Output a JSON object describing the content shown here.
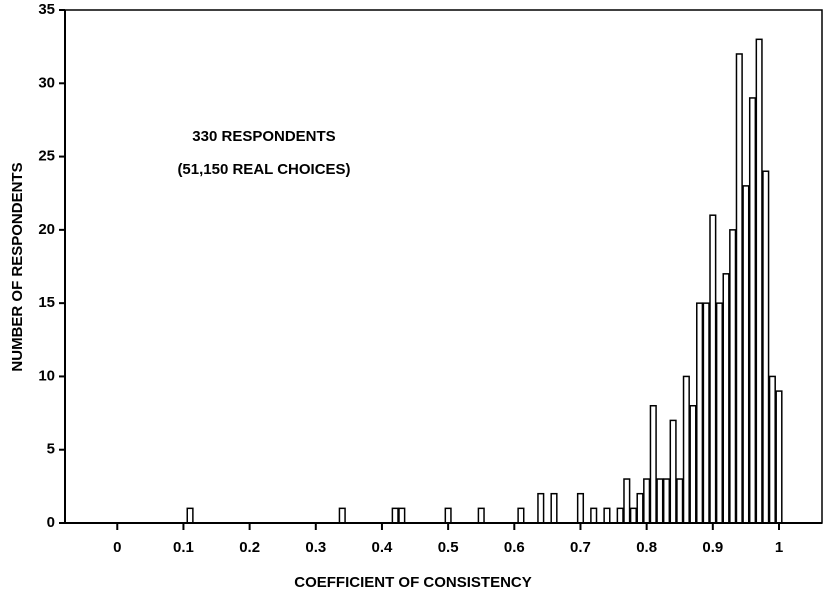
{
  "chart_data": {
    "type": "bar",
    "annotations": [
      "330 RESPONDENTS",
      "(51,150 REAL CHOICES)"
    ],
    "x_label": "COEFFICIENT OF CONSISTENCY",
    "y_label": "NUMBER OF RESPONDENTS",
    "x": [
      0.11,
      0.34,
      0.42,
      0.43,
      0.5,
      0.55,
      0.61,
      0.64,
      0.66,
      0.7,
      0.72,
      0.74,
      0.76,
      0.77,
      0.78,
      0.79,
      0.8,
      0.81,
      0.82,
      0.83,
      0.84,
      0.85,
      0.86,
      0.87,
      0.88,
      0.89,
      0.9,
      0.91,
      0.92,
      0.93,
      0.94,
      0.95,
      0.96,
      0.97,
      0.98,
      0.99,
      1.0
    ],
    "values": [
      1,
      1,
      1,
      1,
      1,
      1,
      1,
      2,
      2,
      2,
      1,
      1,
      1,
      3,
      1,
      2,
      3,
      8,
      3,
      3,
      7,
      3,
      10,
      8,
      15,
      15,
      21,
      15,
      17,
      20,
      32,
      23,
      29,
      33,
      24,
      10,
      9
    ],
    "color": "#000000",
    "xlim": [
      -0.079,
      1.065
    ],
    "xticks": [
      0,
      0.1,
      0.2,
      0.3,
      0.4,
      0.5,
      0.6,
      0.7,
      0.8,
      0.9,
      1
    ],
    "ylim": [
      0,
      35
    ],
    "yticks": [
      0,
      5,
      10,
      15,
      20,
      25,
      30,
      35
    ]
  }
}
